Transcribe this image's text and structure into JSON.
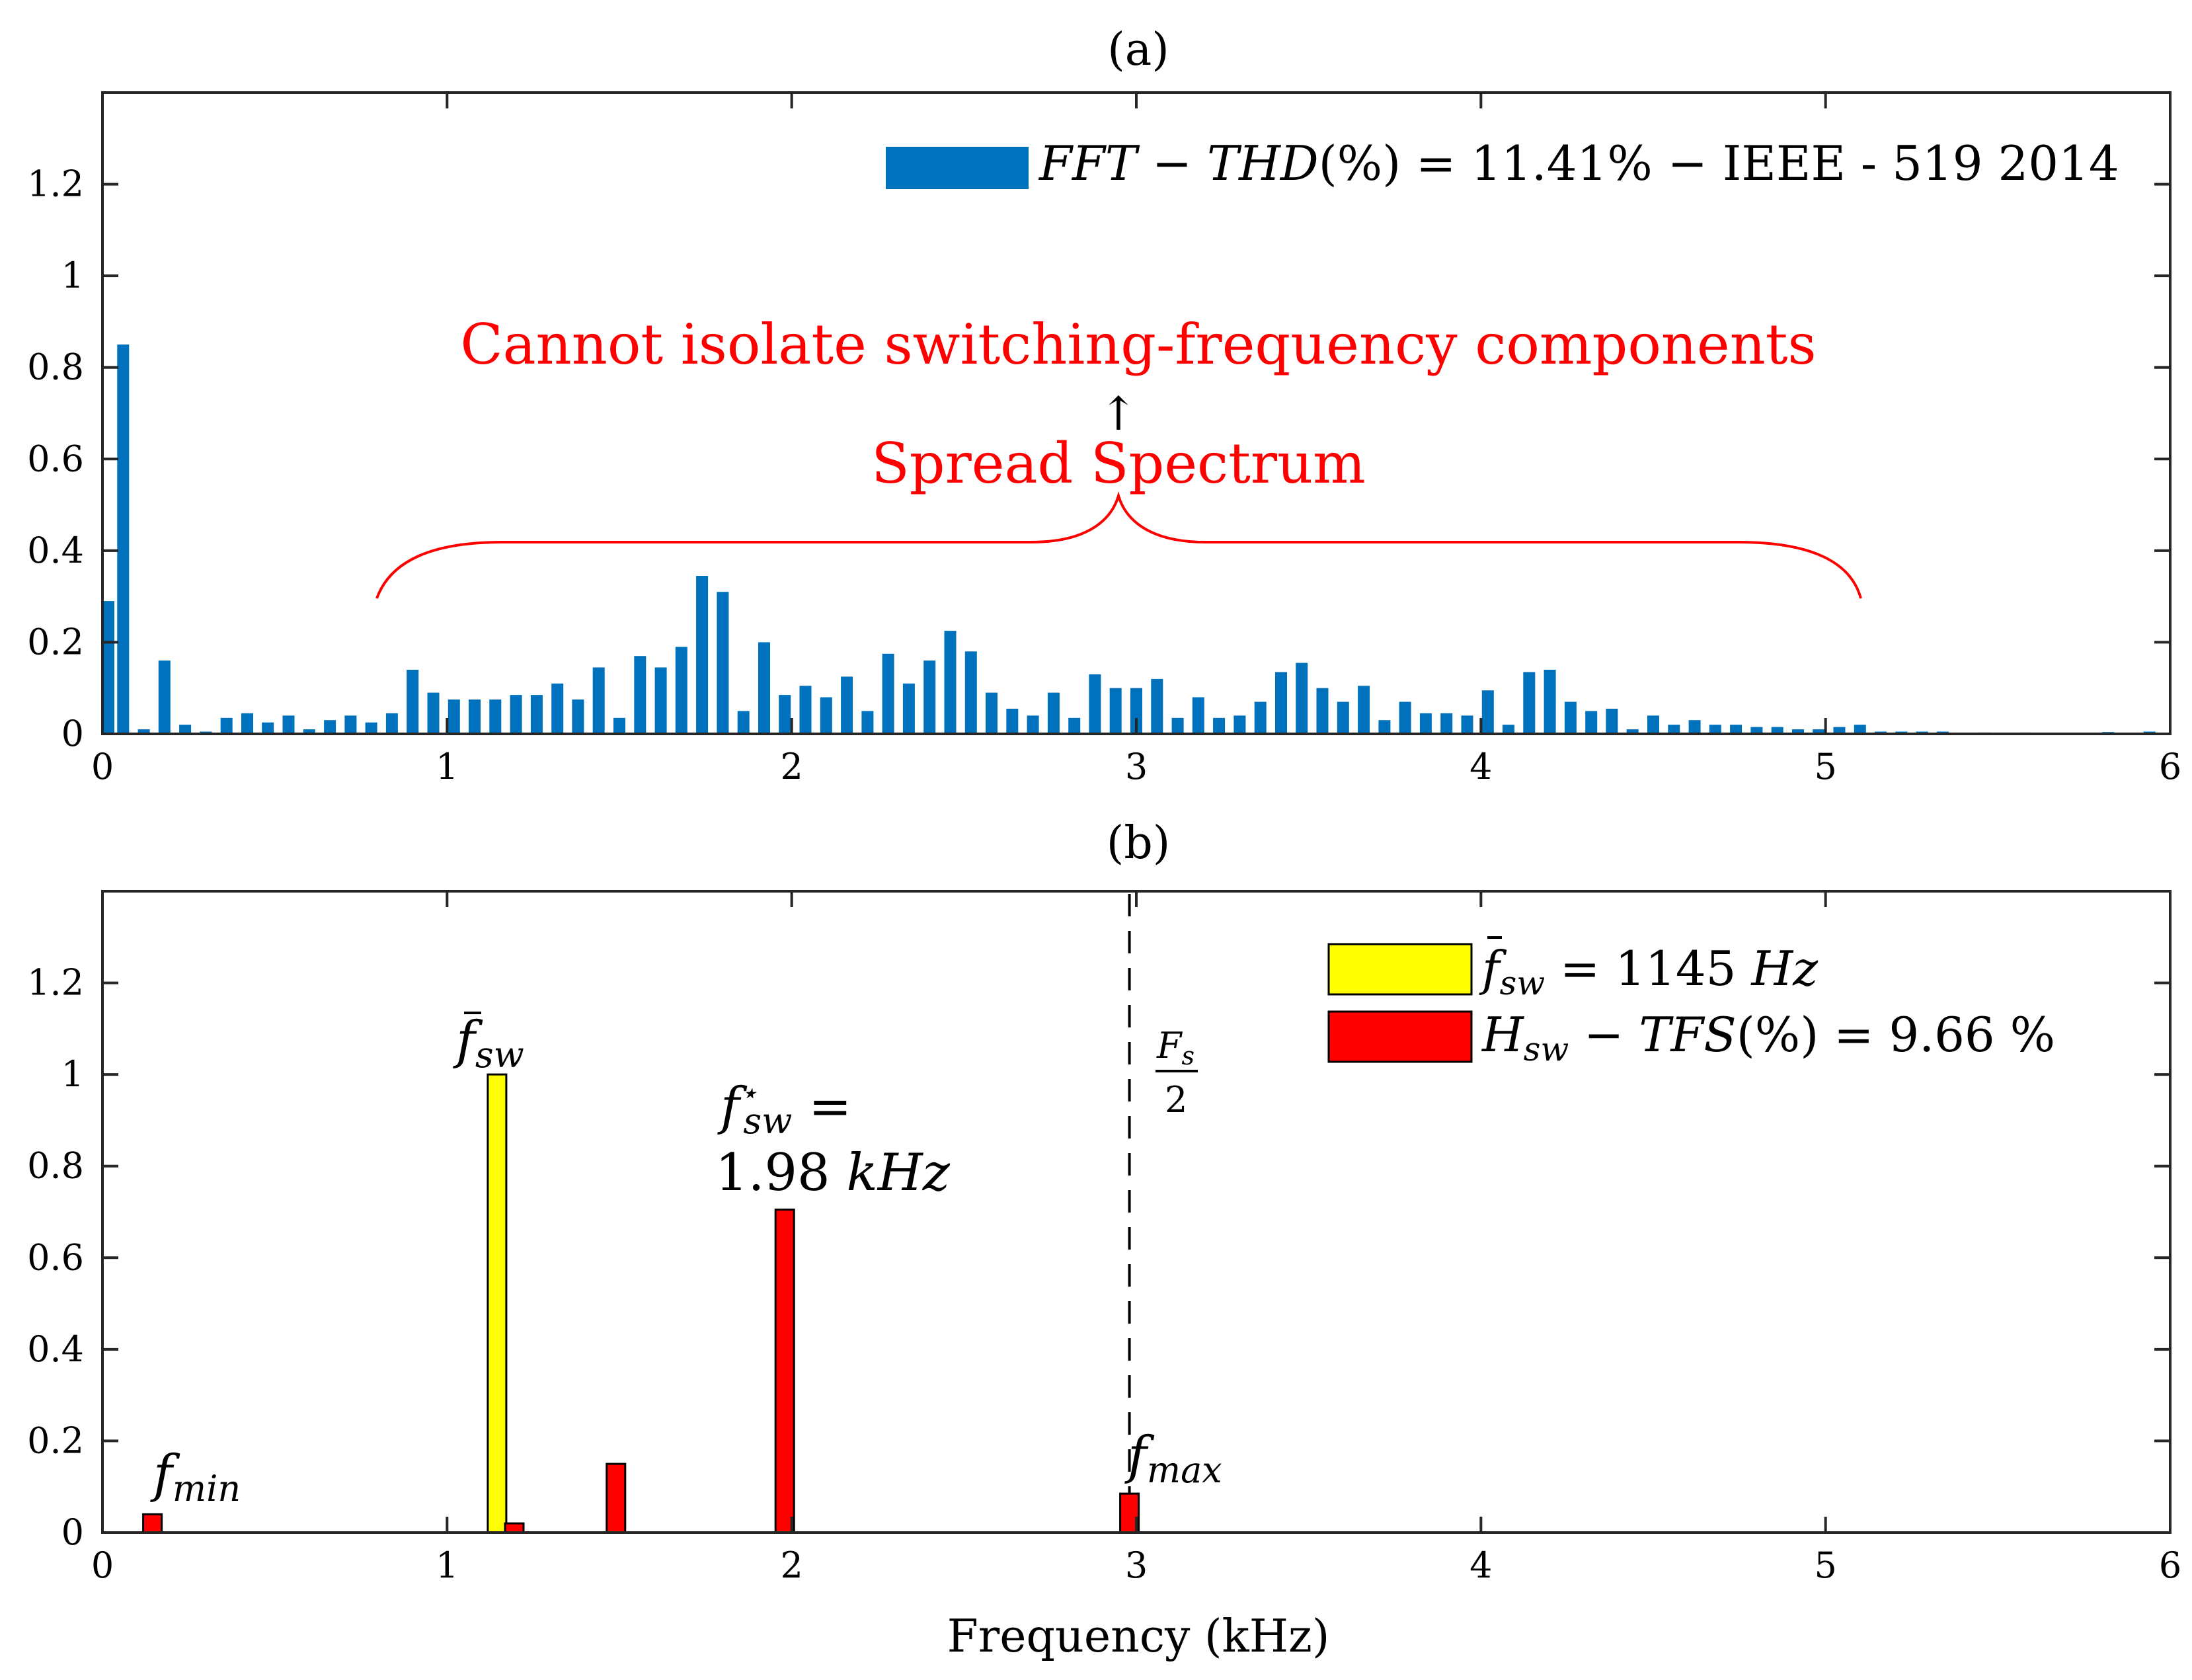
{
  "chart_data": [
    {
      "type": "bar",
      "title": "(a)",
      "xlabel": "",
      "ylabel": "",
      "xlim": [
        0,
        6
      ],
      "ylim": [
        0,
        1.4
      ],
      "xticks": [
        "0",
        "1",
        "2",
        "3",
        "4",
        "5",
        "6"
      ],
      "yticks": [
        "0",
        "0.2",
        "0.4",
        "0.6",
        "0.8",
        "1",
        "1.2"
      ],
      "series": [
        {
          "name": "FFT-THD",
          "color": "#0072bd",
          "x": [
            0,
            0.06,
            0.12,
            0.18,
            0.24,
            0.3,
            0.36,
            0.42,
            0.48,
            0.54,
            0.6,
            0.66,
            0.72,
            0.78,
            0.84,
            0.9,
            0.96,
            1.02,
            1.08,
            1.14,
            1.2,
            1.26,
            1.32,
            1.38,
            1.44,
            1.5,
            1.56,
            1.62,
            1.68,
            1.74,
            1.8,
            1.86,
            1.92,
            1.98,
            2.04,
            2.1,
            2.16,
            2.22,
            2.28,
            2.34,
            2.4,
            2.46,
            2.52,
            2.58,
            2.64,
            2.7,
            2.76,
            2.82,
            2.88,
            2.94,
            3.0,
            3.06,
            3.12,
            3.18,
            3.24,
            3.3,
            3.36,
            3.42,
            3.48,
            3.54,
            3.6,
            3.66,
            3.72,
            3.78,
            3.84,
            3.9,
            3.96,
            4.02,
            4.08,
            4.14,
            4.2,
            4.26,
            4.32,
            4.38,
            4.44,
            4.5,
            4.56,
            4.62,
            4.68,
            4.74,
            4.8,
            4.86,
            4.92,
            4.98,
            5.04,
            5.1,
            5.16,
            5.22,
            5.28,
            5.34,
            5.46,
            5.58,
            5.82,
            5.94
          ],
          "values": [
            0.29,
            0.85,
            0.01,
            0.16,
            0.02,
            0.005,
            0.035,
            0.045,
            0.025,
            0.04,
            0.01,
            0.03,
            0.04,
            0.025,
            0.045,
            0.14,
            0.09,
            0.075,
            0.075,
            0.075,
            0.085,
            0.085,
            0.11,
            0.075,
            0.145,
            0.035,
            0.17,
            0.145,
            0.19,
            0.345,
            0.31,
            0.05,
            0.2,
            0.085,
            0.105,
            0.08,
            0.125,
            0.05,
            0.175,
            0.11,
            0.16,
            0.225,
            0.18,
            0.09,
            0.055,
            0.04,
            0.09,
            0.035,
            0.13,
            0.1,
            0.1,
            0.12,
            0.035,
            0.08,
            0.035,
            0.04,
            0.07,
            0.135,
            0.155,
            0.1,
            0.07,
            0.105,
            0.03,
            0.07,
            0.045,
            0.045,
            0.04,
            0.095,
            0.02,
            0.135,
            0.14,
            0.07,
            0.05,
            0.055,
            0.01,
            0.04,
            0.02,
            0.03,
            0.02,
            0.02,
            0.015,
            0.015,
            0.01,
            0.01,
            0.015,
            0.02,
            0.005,
            0.005,
            0.005,
            0.005,
            0.003,
            0.003,
            0.004,
            0.005
          ]
        }
      ],
      "legend": {
        "text_fft": "FFT",
        "text_minus1": " − ",
        "text_thd": "THD",
        "text_value": "(%) = 11.41% − IEEE - 519 2014",
        "placement": "top-right"
      },
      "annotations": {
        "cannot_isolate": "Cannot isolate switching-frequency components",
        "spread_spectrum": "Spread Spectrum",
        "arrow": "↑"
      }
    },
    {
      "type": "bar",
      "title": "(b)",
      "xlabel": "Frequency (kHz)",
      "ylabel": "",
      "xlim": [
        0,
        6
      ],
      "ylim": [
        0,
        1.4
      ],
      "xticks": [
        "0",
        "1",
        "2",
        "3",
        "4",
        "5",
        "6"
      ],
      "yticks": [
        "0",
        "0.2",
        "0.4",
        "0.6",
        "0.8",
        "1",
        "1.2"
      ],
      "series": [
        {
          "name": "f_sw_bar",
          "color": "#ffff00",
          "x": [
            1.145
          ],
          "values": [
            1.0
          ]
        },
        {
          "name": "H_sw",
          "color": "#ff0000",
          "x": [
            0.145,
            1.195,
            1.49,
            1.98,
            2.98
          ],
          "values": [
            0.04,
            0.02,
            0.15,
            0.705,
            0.085
          ]
        }
      ],
      "vline_x": 2.98,
      "legend": {
        "entry1_name": "f",
        "entry1_sub": "sw",
        "entry1_value": " =  1145 ",
        "entry1_unit": "Hz",
        "entry2_name": "H",
        "entry2_sub": "sw",
        "entry2_mid": " − ",
        "entry2_tfs": "TFS",
        "entry2_value": "(%) =  9.66 %",
        "placement": "top-right"
      },
      "annotations": {
        "fsw_bar_main": "f",
        "fsw_bar_sub": "sw",
        "fstar_main": "f",
        "fstar_sup": "⋆",
        "fstar_sub": "sw",
        "fstar_eq": " =",
        "fstar_value": "1.98 ",
        "fstar_unit": "kHz",
        "fmin_main": "f",
        "fmin_sub": "min",
        "fmax_main": "f",
        "fmax_sub": "max",
        "fs_num": "F",
        "fs_num_sub": "s",
        "fs_den": "2"
      }
    }
  ]
}
